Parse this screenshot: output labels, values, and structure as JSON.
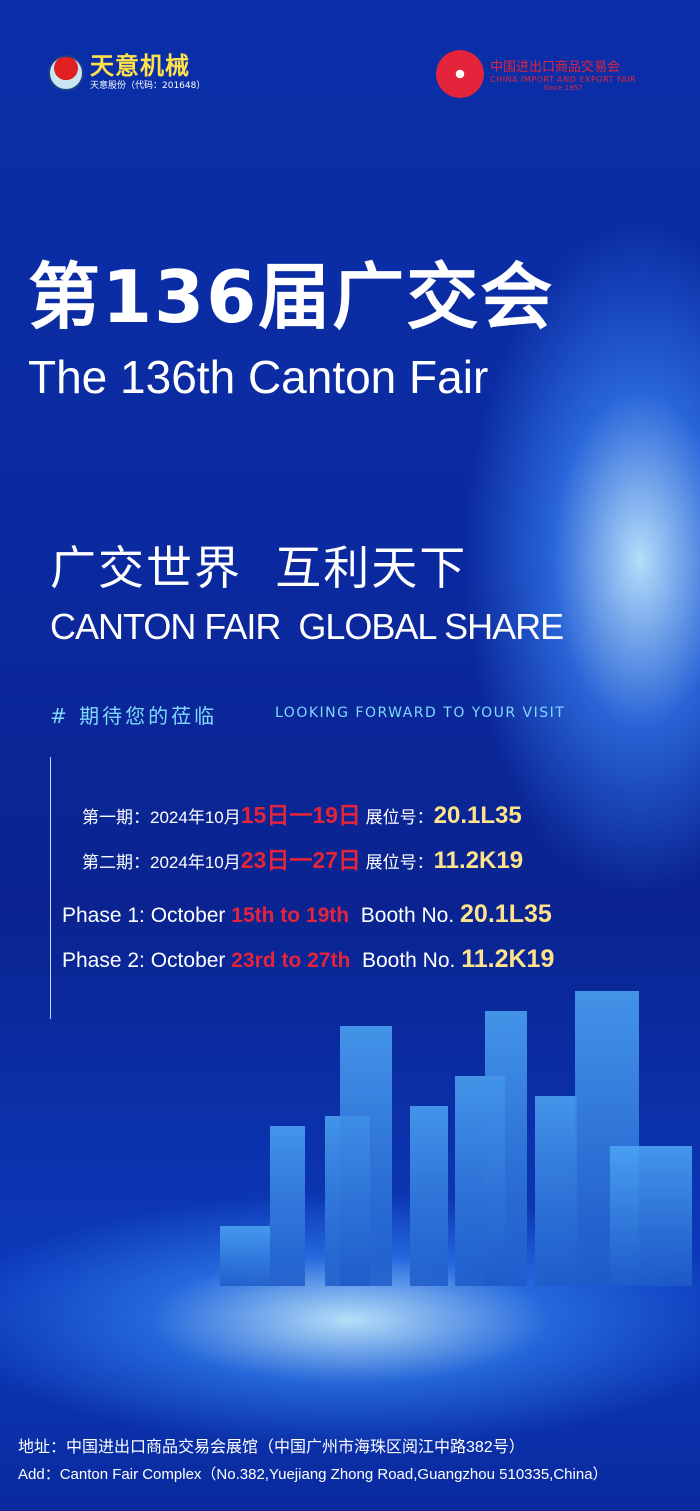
{
  "logos": {
    "left_brand": "天意机械",
    "left_sub": "天意股份（代码：201648）",
    "right_cn": "中国进出口商品交易会",
    "right_en": "CHINA IMPORT AND EXPORT FAIR",
    "right_since": "Since 1957"
  },
  "title_cn": "第136届广交会",
  "title_en": "The 136th Canton Fair",
  "slogan_cn": "广交世界  互利天下",
  "slogan_en": "CANTON FAIR  GLOBAL SHARE",
  "tagline_cn": "# 期待您的莅临",
  "tagline_en": "LOOKING FORWARD TO YOUR VISIT",
  "phases_cn": [
    {
      "label": "第一期：2024年10月",
      "dates": "15日一19日",
      "booth_label": " 展位号：",
      "booth": "20.1L35"
    },
    {
      "label": "第二期：2024年10月",
      "dates": "23日一27日",
      "booth_label": " 展位号：",
      "booth": "11.2K19"
    }
  ],
  "phases_en": [
    {
      "label": "Phase 1: October ",
      "dates": "15th to 19th",
      "booth_label": "  Booth No. ",
      "booth": "20.1L35"
    },
    {
      "label": "Phase 2: October ",
      "dates": "23rd to 27th",
      "booth_label": "  Booth No. ",
      "booth": "11.2K19"
    }
  ],
  "address_cn": "地址：中国进出口商品交易会展馆（中国广州市海珠区阅江中路382号）",
  "address_en": "Add：Canton Fair Complex（No.382,Yuejiang Zhong Road,Guangzhou 510335,China）",
  "colors": {
    "accent_red": "#e3243a",
    "accent_yellow": "#ffe38a",
    "tag_cyan": "#7fd8ff",
    "background": "#0b2aa0"
  }
}
